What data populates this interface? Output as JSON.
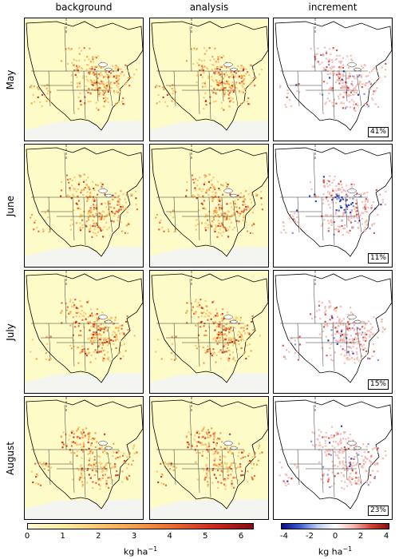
{
  "columns": [
    "background",
    "analysis",
    "increment"
  ],
  "rows": [
    {
      "month": "May",
      "increment_pct": "41%"
    },
    {
      "month": "June",
      "increment_pct": "11%"
    },
    {
      "month": "July",
      "increment_pct": "15%"
    },
    {
      "month": "August",
      "increment_pct": "23%"
    }
  ],
  "colorbar_left": {
    "ticks": [
      "0",
      "1",
      "2",
      "3",
      "4",
      "5",
      "6"
    ],
    "unit": "kg ha",
    "unit_exp": "−1",
    "colors": [
      "#fffbd0",
      "#fde9a0",
      "#fbc46b",
      "#f59a45",
      "#e8602e",
      "#c92a1f",
      "#8a0a12"
    ]
  },
  "colorbar_right": {
    "ticks": [
      "-4",
      "-2",
      "0",
      "2",
      "4"
    ],
    "unit": "kg ha",
    "unit_exp": "−1",
    "colors": [
      "#0a0a8a",
      "#3a5fd0",
      "#b9c8f0",
      "#ffffff",
      "#f3b7b0",
      "#d6473a",
      "#8a0a12"
    ]
  },
  "palette": {
    "bg_panel": "#fdfbc8",
    "inc_panel": "#ffffff",
    "coast": "#000000"
  }
}
